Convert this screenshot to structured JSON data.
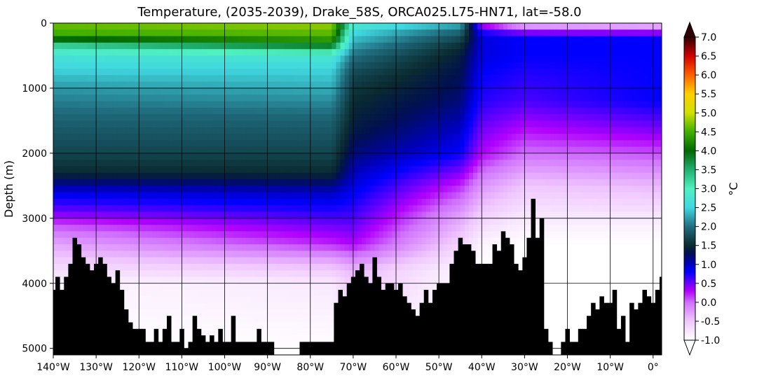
{
  "chart_data": {
    "type": "heatmap",
    "title": "Temperature, (2035-2039), Drake_58S, ORCA025.L75-HN71, lat=-58.0",
    "xlabel": "",
    "ylabel": "Depth (m)",
    "xlim": [
      -140,
      2
    ],
    "ylim": [
      5100,
      0
    ],
    "y_inverted": true,
    "grid": true,
    "x_ticks": [
      {
        "value": -140,
        "label": "140°W"
      },
      {
        "value": -130,
        "label": "130°W"
      },
      {
        "value": -120,
        "label": "120°W"
      },
      {
        "value": -110,
        "label": "110°W"
      },
      {
        "value": -100,
        "label": "100°W"
      },
      {
        "value": -90,
        "label": "90°W"
      },
      {
        "value": -80,
        "label": "80°W"
      },
      {
        "value": -70,
        "label": "70°W"
      },
      {
        "value": -60,
        "label": "60°W"
      },
      {
        "value": -50,
        "label": "50°W"
      },
      {
        "value": -40,
        "label": "40°W"
      },
      {
        "value": -30,
        "label": "30°W"
      },
      {
        "value": -20,
        "label": "20°W"
      },
      {
        "value": -10,
        "label": "10°W"
      },
      {
        "value": 0,
        "label": "0°"
      }
    ],
    "y_ticks": [
      {
        "value": 0,
        "label": "0"
      },
      {
        "value": 1000,
        "label": "1000"
      },
      {
        "value": 2000,
        "label": "2000"
      },
      {
        "value": 3000,
        "label": "3000"
      },
      {
        "value": 4000,
        "label": "4000"
      },
      {
        "value": 5000,
        "label": "5000"
      }
    ],
    "colorbar": {
      "label": "°C",
      "min": -1.0,
      "max": 7.0,
      "extend": "both",
      "ticks": [
        "-1.0",
        "-0.5",
        "0.0",
        "0.5",
        "1.0",
        "1.5",
        "2.0",
        "2.5",
        "3.0",
        "3.5",
        "4.0",
        "4.5",
        "5.0",
        "5.5",
        "6.0",
        "6.5",
        "7.0"
      ],
      "colors": [
        {
          "v": -1.0,
          "c": "#ffffff"
        },
        {
          "v": -0.5,
          "c": "#f0c8ff"
        },
        {
          "v": 0.0,
          "c": "#d070ff"
        },
        {
          "v": 0.3,
          "c": "#b000ff"
        },
        {
          "v": 0.6,
          "c": "#4a00ff"
        },
        {
          "v": 0.8,
          "c": "#0000ff"
        },
        {
          "v": 1.0,
          "c": "#0000c0"
        },
        {
          "v": 1.3,
          "c": "#001050"
        },
        {
          "v": 1.5,
          "c": "#0a2a30"
        },
        {
          "v": 2.0,
          "c": "#206e80"
        },
        {
          "v": 2.5,
          "c": "#40d8e0"
        },
        {
          "v": 3.0,
          "c": "#50f0c0"
        },
        {
          "v": 3.5,
          "c": "#20b070"
        },
        {
          "v": 4.0,
          "c": "#006800"
        },
        {
          "v": 4.5,
          "c": "#40b000"
        },
        {
          "v": 5.0,
          "c": "#d0e000"
        },
        {
          "v": 5.5,
          "c": "#ffd000"
        },
        {
          "v": 6.0,
          "c": "#ff6000"
        },
        {
          "v": 6.5,
          "c": "#d00000"
        },
        {
          "v": 7.0,
          "c": "#300000"
        }
      ]
    },
    "field_description_note": "",
    "temperature_profiles": [
      {
        "lon": -140,
        "depth": [
          0,
          100,
          200,
          300,
          400,
          500,
          700,
          1000,
          1500,
          2000,
          2300,
          2600,
          2900,
          3100,
          3400,
          3700,
          4000,
          5100
        ],
        "temp": [
          4.6,
          4.6,
          4.4,
          3.5,
          3.0,
          2.7,
          2.5,
          2.2,
          1.9,
          1.7,
          1.5,
          0.9,
          0.5,
          0.1,
          -0.3,
          -0.6,
          -0.9,
          -1.0
        ]
      },
      {
        "lon": -75,
        "depth": [
          0,
          100,
          200,
          300,
          400,
          500,
          700,
          1000,
          1500,
          2000,
          2300,
          2600,
          2900,
          3100,
          3400,
          3700,
          4000,
          5100
        ],
        "temp": [
          4.8,
          4.7,
          4.5,
          4.2,
          3.4,
          2.8,
          2.5,
          2.3,
          1.9,
          1.7,
          1.5,
          1.0,
          0.7,
          0.5,
          0.2,
          -0.4,
          -0.8,
          -1.0
        ]
      },
      {
        "lon": -70,
        "depth": [
          0,
          100,
          300,
          500,
          800,
          1200,
          1600,
          2000,
          2500,
          3000,
          3400,
          3800,
          5100
        ],
        "temp": [
          2.9,
          2.6,
          2.3,
          2.0,
          1.7,
          1.5,
          1.4,
          1.2,
          0.9,
          0.6,
          0.3,
          -0.4,
          -1.0
        ]
      },
      {
        "lon": -45,
        "depth": [
          0,
          100,
          300,
          500,
          800,
          1200,
          1600,
          2000,
          2500,
          3000,
          3400,
          3800,
          5100
        ],
        "temp": [
          2.4,
          2.0,
          1.6,
          1.4,
          1.3,
          1.2,
          1.0,
          0.8,
          0.2,
          -0.3,
          -0.6,
          -0.9,
          -1.0
        ]
      },
      {
        "lon": -40,
        "depth": [
          0,
          100,
          200,
          500,
          800,
          1200,
          1600,
          2000,
          2500,
          3000,
          3400,
          3800,
          5100
        ],
        "temp": [
          0.2,
          0.6,
          0.9,
          0.9,
          0.8,
          0.7,
          0.5,
          0.3,
          -0.2,
          -0.6,
          -0.9,
          -1.0,
          -1.0
        ]
      },
      {
        "lon": -30,
        "depth": [
          0,
          100,
          200,
          500,
          800,
          1200,
          1600,
          2000,
          2500,
          3000,
          3400,
          3800,
          5100
        ],
        "temp": [
          -0.5,
          0.1,
          0.8,
          0.8,
          0.7,
          0.6,
          0.3,
          0.0,
          -0.5,
          -0.8,
          -1.0,
          -1.0,
          -1.0
        ]
      },
      {
        "lon": 2,
        "depth": [
          0,
          100,
          200,
          500,
          800,
          1200,
          1600,
          2000,
          2500,
          3000,
          3400,
          3800,
          5100
        ],
        "temp": [
          -0.6,
          0.0,
          0.8,
          0.8,
          0.8,
          0.8,
          0.5,
          0.1,
          -0.4,
          -0.8,
          -1.0,
          -1.0,
          -1.0
        ]
      }
    ],
    "bathymetry": {
      "lon": [
        -140,
        -139,
        -138,
        -137,
        -136,
        -135,
        -134,
        -133,
        -132,
        -131,
        -130,
        -129,
        -128,
        -127,
        -126,
        -125,
        -124,
        -123,
        -122,
        -121,
        -120,
        -119,
        -118,
        -117,
        -116,
        -115,
        -114,
        -113,
        -112,
        -111,
        -110,
        -109,
        -108,
        -107,
        -106,
        -105,
        -104,
        -103,
        -102,
        -101,
        -100,
        -99,
        -98,
        -97,
        -96,
        -95,
        -94,
        -93,
        -92,
        -91,
        -90,
        -89,
        -88,
        -87,
        -86,
        -85,
        -84,
        -83,
        -82,
        -81,
        -80,
        -79,
        -78,
        -77,
        -76,
        -75,
        -74,
        -73,
        -72,
        -71,
        -70,
        -69,
        -68,
        -67,
        -66,
        -65,
        -64,
        -63,
        -62,
        -61,
        -60,
        -59,
        -58,
        -57,
        -56,
        -55,
        -54,
        -53,
        -52,
        -51,
        -50,
        -49,
        -48,
        -47,
        -46,
        -45,
        -44,
        -43,
        -42,
        -41,
        -40,
        -39,
        -38,
        -37,
        -36,
        -35,
        -34,
        -33,
        -32,
        -31,
        -30,
        -29,
        -28,
        -27,
        -26,
        -25,
        -24,
        -23,
        -22,
        -21,
        -20,
        -19,
        -18,
        -17,
        -16,
        -15,
        -14,
        -13,
        -12,
        -11,
        -10,
        -9,
        -8,
        -7,
        -6,
        -5,
        -4,
        -3,
        -2,
        -1,
        0,
        1,
        2
      ],
      "depth": [
        4100,
        3900,
        4100,
        3900,
        3700,
        3300,
        3400,
        3600,
        3700,
        3800,
        3700,
        3600,
        3700,
        3900,
        4000,
        3800,
        4100,
        4400,
        4600,
        4700,
        4700,
        4700,
        4900,
        4900,
        4700,
        4900,
        4700,
        4500,
        4900,
        4900,
        4700,
        5000,
        4900,
        4500,
        4700,
        4800,
        4900,
        4800,
        4900,
        4700,
        4900,
        4900,
        4500,
        4900,
        4900,
        4900,
        4900,
        4900,
        4700,
        4900,
        4900,
        4900,
        5100,
        5100,
        5100,
        5100,
        5100,
        5100,
        4900,
        4900,
        4900,
        4900,
        4900,
        4900,
        4900,
        4900,
        4300,
        4100,
        4200,
        4000,
        3900,
        3800,
        3700,
        3900,
        4000,
        3600,
        3900,
        4100,
        4000,
        4000,
        4100,
        4000,
        4200,
        4300,
        4400,
        4500,
        4300,
        4100,
        4300,
        4100,
        4000,
        4000,
        4000,
        3700,
        3500,
        3300,
        3400,
        3400,
        3500,
        3700,
        3700,
        3700,
        3700,
        3400,
        3500,
        3200,
        3300,
        3400,
        3700,
        3800,
        3600,
        3300,
        2700,
        3300,
        3000,
        4700,
        4900,
        5100,
        5100,
        4900,
        4700,
        4900,
        4900,
        4700,
        4700,
        4500,
        4300,
        4400,
        4200,
        4300,
        4300,
        4100,
        4700,
        4500,
        4900,
        4300,
        4400,
        4300,
        4100,
        4200,
        4300,
        4100,
        3900,
        3600
      ]
    }
  }
}
